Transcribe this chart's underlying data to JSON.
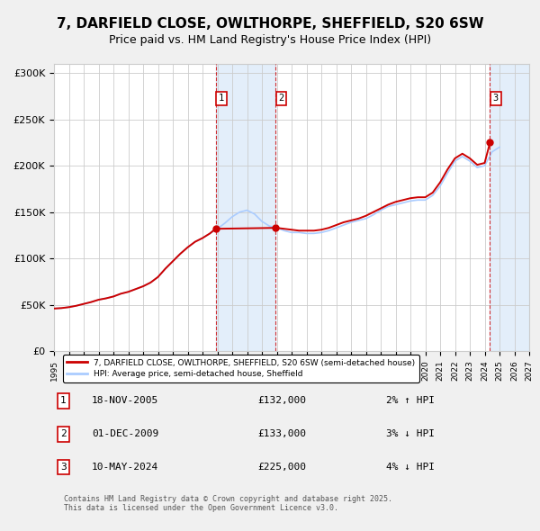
{
  "title": "7, DARFIELD CLOSE, OWLTHORPE, SHEFFIELD, S20 6SW",
  "subtitle": "Price paid vs. HM Land Registry's House Price Index (HPI)",
  "title_fontsize": 11,
  "subtitle_fontsize": 9,
  "background_color": "#f0f0f0",
  "plot_bg_color": "#ffffff",
  "ylabel": "",
  "ylim": [
    0,
    310000
  ],
  "yticks": [
    0,
    50000,
    100000,
    150000,
    200000,
    250000,
    300000
  ],
  "ytick_labels": [
    "£0",
    "£50K",
    "£100K",
    "£150K",
    "£200K",
    "£250K",
    "£300K"
  ],
  "xmin": 1995.0,
  "xmax": 2027.0,
  "sale_color": "#cc0000",
  "hpi_color": "#aaccff",
  "sale_label": "7, DARFIELD CLOSE, OWLTHORPE, SHEFFIELD, S20 6SW (semi-detached house)",
  "hpi_label": "HPI: Average price, semi-detached house, Sheffield",
  "purchases": [
    {
      "num": 1,
      "date_x": 2005.88,
      "price": 132000,
      "label": "1",
      "vline_x": 2005.88,
      "shade_start": 2005.88,
      "shade_end": 2009.92
    },
    {
      "num": 2,
      "date_x": 2009.92,
      "price": 133000,
      "label": "2",
      "vline_x": 2009.92,
      "shade_start": 2009.92,
      "shade_end": 2009.92
    },
    {
      "num": 3,
      "date_x": 2024.36,
      "price": 225000,
      "label": "3",
      "vline_x": 2024.36,
      "shade_start": 2024.36,
      "shade_end": 2027.0
    }
  ],
  "table_rows": [
    {
      "num": "1",
      "date": "18-NOV-2005",
      "price": "£132,000",
      "hpi_diff": "2% ↑ HPI"
    },
    {
      "num": "2",
      "date": "01-DEC-2009",
      "price": "£133,000",
      "hpi_diff": "3% ↓ HPI"
    },
    {
      "num": "3",
      "date": "10-MAY-2024",
      "price": "£225,000",
      "hpi_diff": "4% ↓ HPI"
    }
  ],
  "footnote": "Contains HM Land Registry data © Crown copyright and database right 2025.\nThis data is licensed under the Open Government Licence v3.0.",
  "hpi_x": [
    1995.0,
    1995.5,
    1996.0,
    1996.5,
    1997.0,
    1997.5,
    1998.0,
    1998.5,
    1999.0,
    1999.5,
    2000.0,
    2000.5,
    2001.0,
    2001.5,
    2002.0,
    2002.5,
    2003.0,
    2003.5,
    2004.0,
    2004.5,
    2005.0,
    2005.5,
    2006.0,
    2006.5,
    2007.0,
    2007.5,
    2008.0,
    2008.5,
    2009.0,
    2009.5,
    2010.0,
    2010.5,
    2011.0,
    2011.5,
    2012.0,
    2012.5,
    2013.0,
    2013.5,
    2014.0,
    2014.5,
    2015.0,
    2015.5,
    2016.0,
    2016.5,
    2017.0,
    2017.5,
    2018.0,
    2018.5,
    2019.0,
    2019.5,
    2020.0,
    2020.5,
    2021.0,
    2021.5,
    2022.0,
    2022.5,
    2023.0,
    2023.5,
    2024.0,
    2024.5,
    2025.0
  ],
  "hpi_y": [
    46000,
    46500,
    47500,
    49000,
    51000,
    53000,
    55500,
    57000,
    59000,
    62000,
    64000,
    67000,
    70000,
    74000,
    80000,
    89000,
    97000,
    105000,
    112000,
    118000,
    122000,
    127000,
    132000,
    138000,
    145000,
    150000,
    152000,
    148000,
    140000,
    135000,
    133000,
    130000,
    128000,
    128000,
    127000,
    127000,
    128000,
    130000,
    133000,
    136000,
    139000,
    141000,
    143000,
    147000,
    152000,
    156000,
    158000,
    160000,
    162000,
    163000,
    163000,
    168000,
    178000,
    192000,
    205000,
    210000,
    205000,
    198000,
    200000,
    215000,
    220000
  ],
  "sale_x": [
    1995.0,
    1995.5,
    1996.0,
    1996.5,
    1997.0,
    1997.5,
    1998.0,
    1998.5,
    1999.0,
    1999.5,
    2000.0,
    2000.5,
    2001.0,
    2001.5,
    2002.0,
    2002.5,
    2003.0,
    2003.5,
    2004.0,
    2004.5,
    2005.0,
    2005.5,
    2005.88,
    2009.92,
    2010.0,
    2010.5,
    2011.0,
    2011.5,
    2012.0,
    2012.5,
    2013.0,
    2013.5,
    2014.0,
    2014.5,
    2015.0,
    2015.5,
    2016.0,
    2016.5,
    2017.0,
    2017.5,
    2018.0,
    2018.5,
    2019.0,
    2019.5,
    2020.0,
    2020.5,
    2021.0,
    2021.5,
    2022.0,
    2022.5,
    2023.0,
    2023.5,
    2024.0,
    2024.36
  ],
  "sale_y": [
    46000,
    46500,
    47500,
    49000,
    51000,
    53000,
    55500,
    57000,
    59000,
    62000,
    64000,
    67000,
    70000,
    74000,
    80000,
    89000,
    97000,
    105000,
    112000,
    118000,
    122000,
    127000,
    132000,
    133000,
    133000,
    132000,
    131000,
    130000,
    130000,
    130000,
    131000,
    133000,
    136000,
    139000,
    141000,
    143000,
    146000,
    150000,
    154000,
    158000,
    161000,
    163000,
    165000,
    166000,
    166000,
    171000,
    182000,
    196000,
    208000,
    213000,
    208000,
    201000,
    203000,
    225000
  ]
}
